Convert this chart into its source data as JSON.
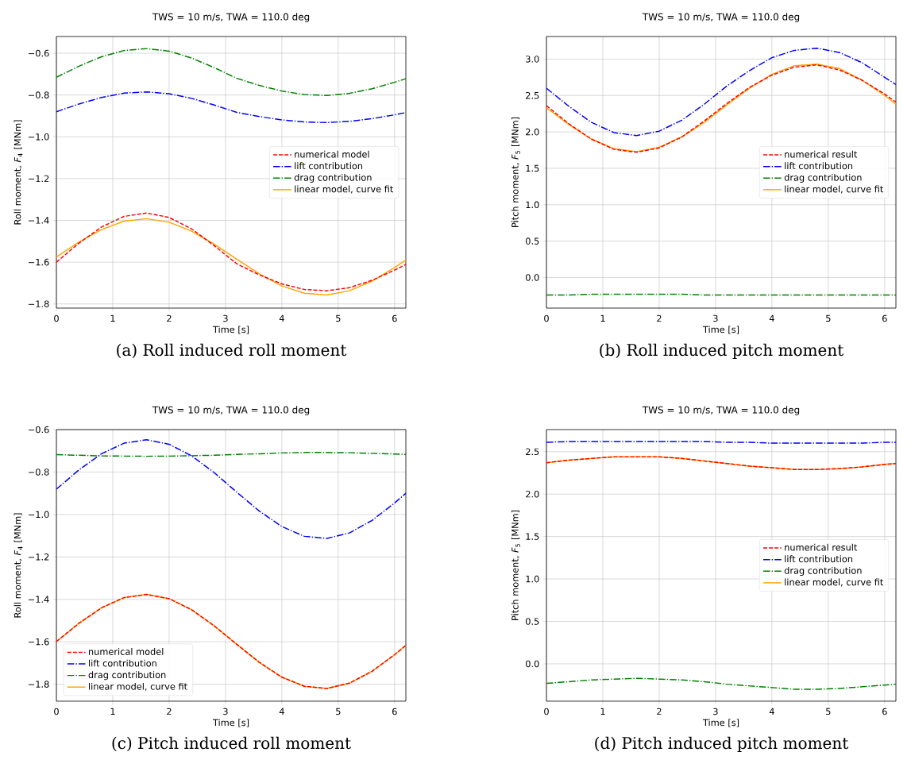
{
  "chart_data": [
    {
      "type": "line",
      "title": "TWS = 10 m/s, TWA = 110.0 deg",
      "xlabel": "Time [s]",
      "ylabel": "Roll moment, *F*$_{4}$ [MNm]",
      "annotations": [
        "(a) Roll induced roll moment"
      ],
      "x": [
        0,
        0.4,
        0.8,
        1.2,
        1.6,
        2.0,
        2.4,
        2.8,
        3.2,
        3.6,
        4.0,
        4.4,
        4.8,
        5.2,
        5.6,
        6.0,
        6.2
      ],
      "series": [
        {
          "name": "numerical model",
          "color": "#ff0000",
          "line_style": "dashed",
          "values": [
            -1.6,
            -1.509,
            -1.432,
            -1.381,
            -1.365,
            -1.386,
            -1.441,
            -1.521,
            -1.608,
            -1.661,
            -1.704,
            -1.731,
            -1.737,
            -1.722,
            -1.687,
            -1.638,
            -1.611
          ]
        },
        {
          "name": "lift contribution",
          "color": "#0000ff",
          "line_style": "dashdot",
          "values": [
            -0.88,
            -0.843,
            -0.812,
            -0.791,
            -0.785,
            -0.794,
            -0.816,
            -0.848,
            -0.883,
            -0.903,
            -0.919,
            -0.929,
            -0.932,
            -0.926,
            -0.913,
            -0.895,
            -0.884
          ]
        },
        {
          "name": "drag contribution",
          "color": "#008000",
          "line_style": "dashdot",
          "values": [
            -0.715,
            -0.662,
            -0.617,
            -0.587,
            -0.578,
            -0.59,
            -0.623,
            -0.669,
            -0.72,
            -0.754,
            -0.781,
            -0.798,
            -0.802,
            -0.792,
            -0.77,
            -0.739,
            -0.722
          ]
        },
        {
          "name": "linear model, curve fit",
          "color": "#ffa500",
          "line_style": "solid",
          "values": [
            -1.575,
            -1.504,
            -1.444,
            -1.404,
            -1.392,
            -1.409,
            -1.452,
            -1.514,
            -1.586,
            -1.656,
            -1.714,
            -1.749,
            -1.757,
            -1.737,
            -1.691,
            -1.626,
            -1.59
          ]
        }
      ],
      "xlim": [
        0,
        6.2
      ],
      "ylim": [
        -1.82,
        -0.52
      ],
      "xticks": [
        0,
        1,
        2,
        3,
        4,
        5,
        6
      ],
      "yticks": [
        {
          "value": -1.8,
          "label": "−1.8"
        },
        {
          "value": -1.6,
          "label": "−1.6"
        },
        {
          "value": -1.4,
          "label": "−1.4"
        },
        {
          "value": -1.2,
          "label": "−1.2"
        },
        {
          "value": -1.0,
          "label": "−1.0"
        },
        {
          "value": -0.8,
          "label": "−0.8"
        },
        {
          "value": -0.6,
          "label": "−0.6"
        }
      ],
      "grid": true,
      "legend": "right"
    },
    {
      "type": "line",
      "title": "TWS = 10 m/s, TWA = 110.0 deg",
      "xlabel": "Time [s]",
      "ylabel": "Pitch moment, *F*$_{5}$ [MNm]",
      "annotations": [
        "(b) Roll induced pitch moment"
      ],
      "x": [
        0,
        0.4,
        0.8,
        1.2,
        1.6,
        2.0,
        2.4,
        2.8,
        3.2,
        3.6,
        4.0,
        4.4,
        4.8,
        5.2,
        5.6,
        6.0,
        6.2
      ],
      "series": [
        {
          "name": "numerical result",
          "color": "#ff0000",
          "line_style": "dashed",
          "values": [
            2.36,
            2.11,
            1.9,
            1.76,
            1.72,
            1.78,
            1.93,
            2.15,
            2.39,
            2.61,
            2.78,
            2.89,
            2.92,
            2.85,
            2.71,
            2.52,
            2.41
          ]
        },
        {
          "name": "lift contribution",
          "color": "#0000ff",
          "line_style": "dashdot",
          "values": [
            2.6,
            2.35,
            2.13,
            1.99,
            1.95,
            2.01,
            2.16,
            2.38,
            2.63,
            2.84,
            3.02,
            3.12,
            3.15,
            3.09,
            2.95,
            2.75,
            2.65
          ]
        },
        {
          "name": "drag contribution",
          "color": "#008000",
          "line_style": "dashdot",
          "values": [
            -0.24,
            -0.24,
            -0.23,
            -0.23,
            -0.23,
            -0.23,
            -0.23,
            -0.24,
            -0.24,
            -0.24,
            -0.24,
            -0.24,
            -0.24,
            -0.24,
            -0.24,
            -0.24,
            -0.24
          ]
        },
        {
          "name": "linear model, curve fit",
          "color": "#ffa500",
          "line_style": "solid",
          "values": [
            2.33,
            2.1,
            1.9,
            1.77,
            1.73,
            1.79,
            1.93,
            2.13,
            2.37,
            2.6,
            2.79,
            2.91,
            2.93,
            2.87,
            2.71,
            2.5,
            2.38
          ]
        }
      ],
      "xlim": [
        0,
        6.2
      ],
      "ylim": [
        -0.42,
        3.31
      ],
      "xticks": [
        0,
        1,
        2,
        3,
        4,
        5,
        6
      ],
      "yticks": [
        {
          "value": 0,
          "label": "0.0"
        },
        {
          "value": 0.5,
          "label": "0.5"
        },
        {
          "value": 1,
          "label": "1.0"
        },
        {
          "value": 1.5,
          "label": "1.5"
        },
        {
          "value": 2,
          "label": "2.0"
        },
        {
          "value": 2.5,
          "label": "2.5"
        },
        {
          "value": 3,
          "label": "3.0"
        }
      ],
      "grid": true,
      "legend": "right"
    },
    {
      "type": "line",
      "title": "TWS = 10 m/s, TWA = 110.0 deg",
      "xlabel": "Time [s]",
      "ylabel": "Roll moment, *F*$_{4}$ [MNm]",
      "annotations": [
        "(c) Pitch induced roll moment"
      ],
      "x": [
        0,
        0.4,
        0.8,
        1.2,
        1.6,
        2.0,
        2.4,
        2.8,
        3.2,
        3.6,
        4.0,
        4.4,
        4.8,
        5.2,
        5.6,
        6.0,
        6.2
      ],
      "series": [
        {
          "name": "numerical model",
          "color": "#ff0000",
          "line_style": "dashed",
          "values": [
            -1.599,
            -1.513,
            -1.44,
            -1.392,
            -1.377,
            -1.397,
            -1.449,
            -1.525,
            -1.612,
            -1.697,
            -1.767,
            -1.81,
            -1.82,
            -1.795,
            -1.739,
            -1.661,
            -1.617
          ]
        },
        {
          "name": "lift contribution",
          "color": "#0000ff",
          "line_style": "dashdot",
          "values": [
            -0.881,
            -0.79,
            -0.714,
            -0.664,
            -0.648,
            -0.669,
            -0.724,
            -0.803,
            -0.895,
            -0.984,
            -1.057,
            -1.103,
            -1.113,
            -1.087,
            -1.028,
            -0.946,
            -0.9
          ]
        },
        {
          "name": "drag contribution",
          "color": "#008000",
          "line_style": "dashdot",
          "values": [
            -0.718,
            -0.721,
            -0.724,
            -0.725,
            -0.726,
            -0.725,
            -0.723,
            -0.721,
            -0.717,
            -0.714,
            -0.71,
            -0.708,
            -0.708,
            -0.709,
            -0.712,
            -0.715,
            -0.717
          ]
        },
        {
          "name": "linear model, curve fit",
          "color": "#ffa500",
          "line_style": "solid",
          "values": [
            -1.599,
            -1.513,
            -1.44,
            -1.392,
            -1.377,
            -1.397,
            -1.449,
            -1.525,
            -1.612,
            -1.697,
            -1.767,
            -1.81,
            -1.82,
            -1.795,
            -1.739,
            -1.661,
            -1.617
          ]
        }
      ],
      "xlim": [
        0,
        6.2
      ],
      "ylim": [
        -1.88,
        -0.6
      ],
      "xticks": [
        0,
        1,
        2,
        3,
        4,
        5,
        6
      ],
      "yticks": [
        {
          "value": -1.8,
          "label": "−1.8"
        },
        {
          "value": -1.6,
          "label": "−1.6"
        },
        {
          "value": -1.4,
          "label": "−1.4"
        },
        {
          "value": -1.2,
          "label": "−1.2"
        },
        {
          "value": -1.0,
          "label": "−1.0"
        },
        {
          "value": -0.8,
          "label": "−0.8"
        },
        {
          "value": -0.6,
          "label": "−0.6"
        }
      ],
      "grid": true,
      "legend": "bottom left"
    },
    {
      "type": "line",
      "title": "TWS = 10 m/s, TWA = 110.0 deg",
      "xlabel": "Time [s]",
      "ylabel": "Pitch moment, *F*$_{5}$ [MNm]",
      "annotations": [
        "(d) Pitch induced pitch moment"
      ],
      "x": [
        0,
        0.4,
        0.8,
        1.2,
        1.6,
        2.0,
        2.4,
        2.8,
        3.2,
        3.6,
        4.0,
        4.4,
        4.8,
        5.2,
        5.6,
        6.0,
        6.2
      ],
      "series": [
        {
          "name": "numerical result",
          "color": "#ff0000",
          "line_style": "dashed",
          "values": [
            2.37,
            2.4,
            2.42,
            2.44,
            2.44,
            2.44,
            2.42,
            2.39,
            2.36,
            2.33,
            2.31,
            2.29,
            2.29,
            2.3,
            2.32,
            2.35,
            2.36
          ]
        },
        {
          "name": "lift contribution",
          "color": "#0000ff",
          "line_style": "dashdot",
          "values": [
            2.61,
            2.62,
            2.62,
            2.62,
            2.62,
            2.62,
            2.62,
            2.62,
            2.61,
            2.61,
            2.6,
            2.6,
            2.6,
            2.6,
            2.6,
            2.61,
            2.61
          ]
        },
        {
          "name": "drag contribution",
          "color": "#008000",
          "line_style": "dashdot",
          "values": [
            -0.23,
            -0.21,
            -0.19,
            -0.18,
            -0.17,
            -0.18,
            -0.19,
            -0.21,
            -0.24,
            -0.26,
            -0.28,
            -0.3,
            -0.3,
            -0.29,
            -0.27,
            -0.25,
            -0.24
          ]
        },
        {
          "name": "linear model, curve fit",
          "color": "#ffa500",
          "line_style": "solid",
          "values": [
            2.37,
            2.4,
            2.42,
            2.44,
            2.44,
            2.44,
            2.42,
            2.39,
            2.36,
            2.33,
            2.31,
            2.29,
            2.29,
            2.3,
            2.32,
            2.35,
            2.36
          ]
        }
      ],
      "xlim": [
        0,
        6.2
      ],
      "ylim": [
        -0.44,
        2.76
      ],
      "xticks": [
        0,
        1,
        2,
        3,
        4,
        5,
        6
      ],
      "yticks": [
        {
          "value": 0,
          "label": "0.0"
        },
        {
          "value": 0.5,
          "label": "0.5"
        },
        {
          "value": 1,
          "label": "1.0"
        },
        {
          "value": 1.5,
          "label": "1.5"
        },
        {
          "value": 2,
          "label": "2.0"
        },
        {
          "value": 2.5,
          "label": "2.5"
        }
      ],
      "grid": true,
      "legend": "right"
    }
  ]
}
